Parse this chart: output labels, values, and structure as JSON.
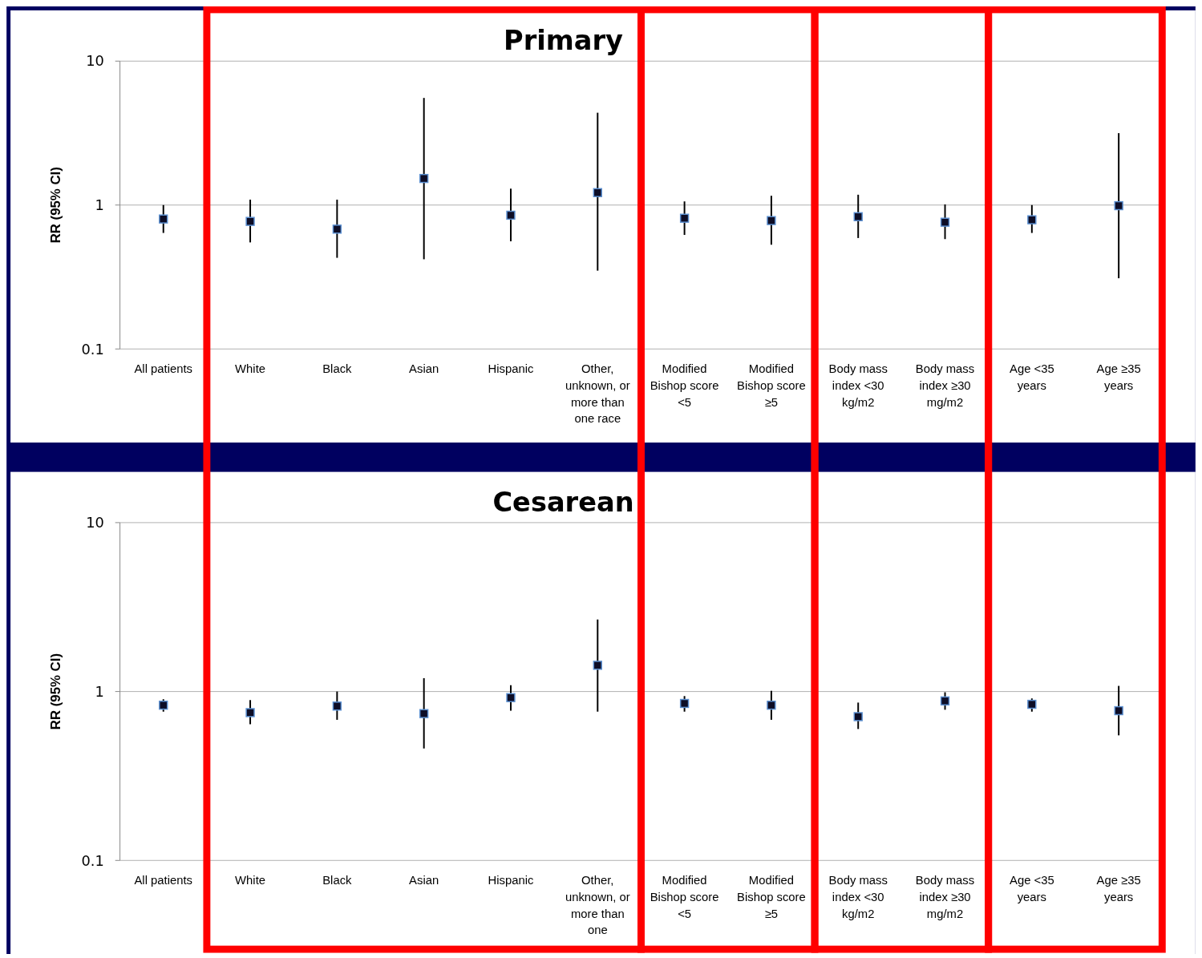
{
  "chart_data": [
    {
      "type": "scatter",
      "title": "Primary",
      "ylabel": "RR (95% CI)",
      "log": "y",
      "grid": "y",
      "marker": "square",
      "ylim": [
        0.1,
        10
      ],
      "yticks": [
        0.1,
        1,
        10
      ],
      "categories": [
        "All patients",
        "White",
        "Black",
        "Asian",
        "Hispanic",
        "Other, unknown, or more than one race",
        "Modified Bishop score <5",
        "Modified Bishop score ≥5",
        "Body mass index <30 kg/m2",
        "Body mass index ≥30 mg/m2",
        "Age <35 years",
        "Age ≥35 years"
      ],
      "series": [
        {
          "color": "#0d0d26",
          "values": [
            0.8,
            0.77,
            0.68,
            1.53,
            0.85,
            1.22,
            0.81,
            0.78,
            0.83,
            0.76,
            0.79,
            0.99
          ],
          "errors": [
            [
              0.64,
              1.0
            ],
            [
              0.55,
              1.09
            ],
            [
              0.43,
              1.09
            ],
            [
              0.42,
              5.55
            ],
            [
              0.56,
              1.3
            ],
            [
              0.35,
              4.38
            ],
            [
              0.62,
              1.06
            ],
            [
              0.53,
              1.16
            ],
            [
              0.59,
              1.18
            ],
            [
              0.58,
              1.01
            ],
            [
              0.64,
              1.0
            ],
            [
              0.31,
              3.16
            ]
          ]
        }
      ]
    },
    {
      "type": "scatter",
      "title": "Cesarean",
      "ylabel": "RR (95% CI)",
      "log": "y",
      "grid": "y",
      "marker": "square",
      "ylim": [
        0.1,
        10
      ],
      "yticks": [
        0.1,
        1,
        10
      ],
      "categories": [
        "All patients",
        "White",
        "Black",
        "Asian",
        "Hispanic",
        "Other, unknown, or more than one",
        "Modified Bishop score <5",
        "Modified Bishop score ≥5",
        "Body mass index <30 kg/m2",
        "Body mass index ≥30 mg/m2",
        "Age <35 years",
        "Age ≥35 years"
      ],
      "series": [
        {
          "color": "#0d0d26",
          "values": [
            0.83,
            0.75,
            0.82,
            0.74,
            0.92,
            1.43,
            0.85,
            0.83,
            0.71,
            0.88,
            0.84,
            0.77
          ],
          "errors": [
            [
              0.76,
              0.9
            ],
            [
              0.64,
              0.89
            ],
            [
              0.68,
              1.0
            ],
            [
              0.46,
              1.2
            ],
            [
              0.77,
              1.09
            ],
            [
              0.76,
              2.67
            ],
            [
              0.76,
              0.94
            ],
            [
              0.68,
              1.01
            ],
            [
              0.6,
              0.86
            ],
            [
              0.78,
              0.99
            ],
            [
              0.76,
              0.91
            ],
            [
              0.55,
              1.08
            ]
          ]
        }
      ]
    }
  ]
}
